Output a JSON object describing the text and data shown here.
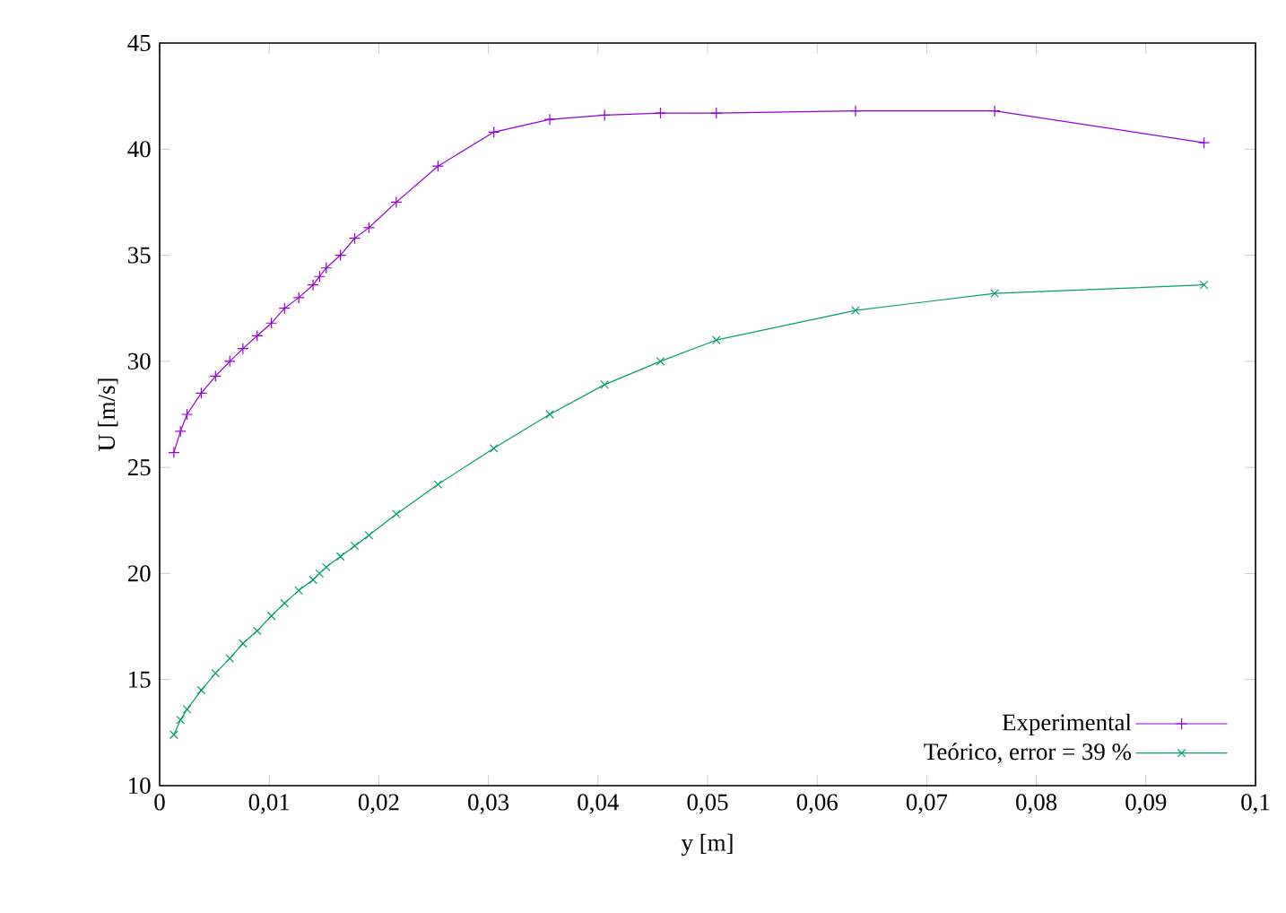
{
  "chart_data": {
    "type": "line",
    "xlabel": "y [m]",
    "ylabel": "U [m/s]",
    "xlim": [
      0,
      0.1
    ],
    "ylim": [
      10,
      45
    ],
    "xticks": [
      0,
      {
        "value": 0.01,
        "label": "0,01"
      },
      {
        "value": 0.02,
        "label": "0,02"
      },
      {
        "value": 0.03,
        "label": "0,03"
      },
      {
        "value": 0.04,
        "label": "0,04"
      },
      {
        "value": 0.05,
        "label": "0,05"
      },
      {
        "value": 0.06,
        "label": "0,06"
      },
      {
        "value": 0.07,
        "label": "0,07"
      },
      {
        "value": 0.08,
        "label": "0,08"
      },
      {
        "value": 0.09,
        "label": "0,09"
      },
      {
        "value": 0.1,
        "label": "0,1"
      }
    ],
    "yticks": [
      10,
      15,
      20,
      25,
      30,
      35,
      40,
      45
    ],
    "x": [
      0.0013,
      0.0019,
      0.0025,
      0.0038,
      0.0051,
      0.0064,
      0.0076,
      0.0089,
      0.0102,
      0.0114,
      0.0127,
      0.014,
      0.0146,
      0.0152,
      0.0165,
      0.0178,
      0.0191,
      0.0216,
      0.0254,
      0.0305,
      0.0356,
      0.0406,
      0.0457,
      0.0508,
      0.0635,
      0.0762,
      0.0953
    ],
    "series": [
      {
        "name": "Experimental",
        "color": "#9400d3",
        "marker": "plus",
        "values": [
          25.7,
          26.7,
          27.5,
          28.5,
          29.3,
          30.0,
          30.6,
          31.2,
          31.8,
          32.5,
          33.0,
          33.6,
          34.0,
          34.4,
          35.0,
          35.8,
          36.3,
          37.5,
          39.2,
          40.8,
          41.4,
          41.6,
          41.7,
          41.7,
          41.8,
          41.8,
          40.3
        ]
      },
      {
        "name": "Teórico, error = 39 %",
        "color": "#009e73",
        "marker": "cross",
        "values": [
          12.4,
          13.1,
          13.6,
          14.5,
          15.3,
          16.0,
          16.7,
          17.3,
          18.0,
          18.6,
          19.2,
          19.7,
          20.0,
          20.3,
          20.8,
          21.3,
          21.8,
          22.8,
          24.2,
          25.9,
          27.5,
          28.9,
          30.0,
          31.0,
          32.4,
          33.2,
          33.6
        ]
      }
    ],
    "legend": "bottom right",
    "grid": false,
    "line_style": "solid"
  }
}
